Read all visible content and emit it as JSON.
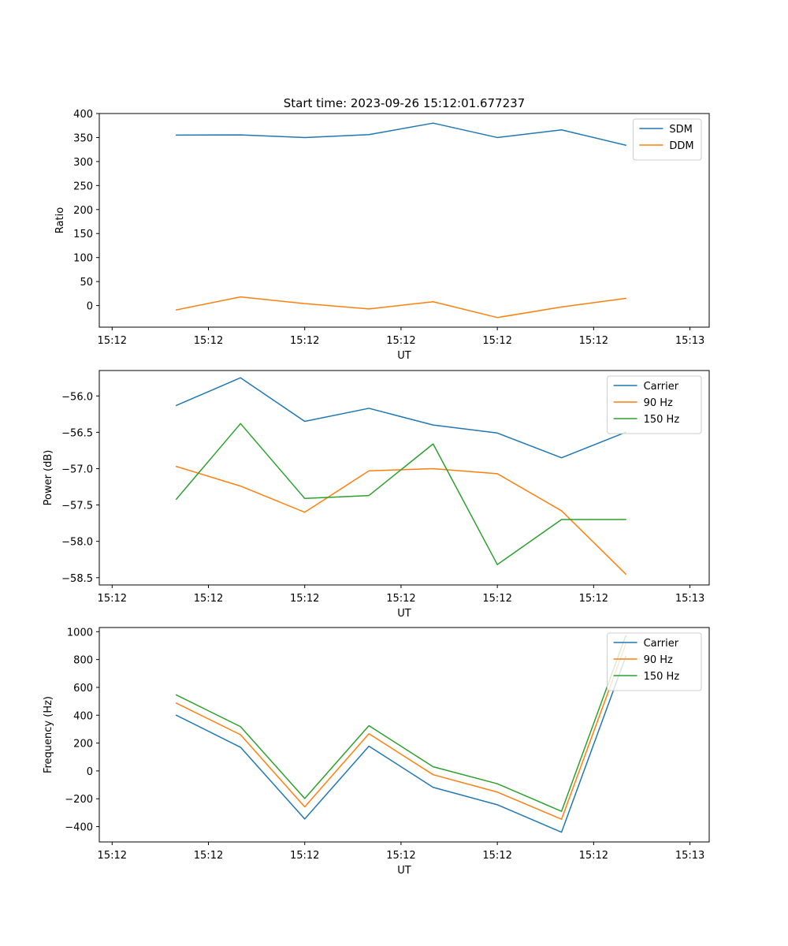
{
  "figure_title": "Start time: 2023-09-26 15:12:01.677237",
  "chart_data": [
    {
      "type": "line",
      "title": "Start time: 2023-09-26 15:12:01.677237",
      "xlabel": "UT",
      "ylabel": "Ratio",
      "x": [
        1,
        2,
        3,
        4,
        5,
        6,
        7,
        8
      ],
      "xlim": [
        -0.2,
        9.3
      ],
      "xticks": [
        0,
        1.5,
        3,
        4.5,
        6,
        7.5,
        9
      ],
      "xtick_labels": [
        "15:12",
        "15:12",
        "15:12",
        "15:12",
        "15:12",
        "15:12",
        "15:13"
      ],
      "ylim": [
        -45,
        400
      ],
      "yticks": [
        0,
        50,
        100,
        150,
        200,
        250,
        300,
        350,
        400
      ],
      "ytick_labels": [
        "0",
        "50",
        "100",
        "150",
        "200",
        "250",
        "300",
        "350",
        "400"
      ],
      "legend_position": "top-right",
      "series": [
        {
          "name": "SDM",
          "color": "#1f77b4",
          "values": [
            355,
            355.5,
            350,
            356,
            380,
            350,
            366,
            334
          ]
        },
        {
          "name": "DDM",
          "color": "#ff7f0e",
          "values": [
            -9,
            18,
            4,
            -7,
            8,
            -25,
            -3,
            15
          ]
        }
      ]
    },
    {
      "type": "line",
      "title": "",
      "xlabel": "UT",
      "ylabel": "Power (dB)",
      "x": [
        1,
        2,
        3,
        4,
        5,
        6,
        7,
        8
      ],
      "xlim": [
        -0.2,
        9.3
      ],
      "xticks": [
        0,
        1.5,
        3,
        4.5,
        6,
        7.5,
        9
      ],
      "xtick_labels": [
        "15:12",
        "15:12",
        "15:12",
        "15:12",
        "15:12",
        "15:12",
        "15:13"
      ],
      "ylim": [
        -58.6,
        -55.65
      ],
      "yticks": [
        -56.0,
        -56.5,
        -57.0,
        -57.5,
        -58.0,
        -58.5
      ],
      "ytick_labels": [
        "−56.0",
        "−56.5",
        "−57.0",
        "−57.5",
        "−58.0",
        "−58.5"
      ],
      "legend_position": "top-right",
      "series": [
        {
          "name": "Carrier",
          "color": "#1f77b4",
          "values": [
            -56.13,
            -55.75,
            -56.35,
            -56.17,
            -56.4,
            -56.51,
            -56.85,
            -56.5
          ]
        },
        {
          "name": "90 Hz",
          "color": "#ff7f0e",
          "values": [
            -56.97,
            -57.24,
            -57.6,
            -57.03,
            -57.0,
            -57.07,
            -57.58,
            -58.45
          ]
        },
        {
          "name": "150 Hz",
          "color": "#2ca02c",
          "values": [
            -57.42,
            -56.38,
            -57.41,
            -57.37,
            -56.66,
            -58.32,
            -57.7,
            -57.7
          ]
        }
      ]
    },
    {
      "type": "line",
      "title": "",
      "xlabel": "UT",
      "ylabel": "Frequency (Hz)",
      "x": [
        1,
        2,
        3,
        4,
        5,
        6,
        7,
        8
      ],
      "xlim": [
        -0.2,
        9.3
      ],
      "xticks": [
        0,
        1.5,
        3,
        4.5,
        6,
        7.5,
        9
      ],
      "xtick_labels": [
        "15:12",
        "15:12",
        "15:12",
        "15:12",
        "15:12",
        "15:12",
        "15:13"
      ],
      "ylim": [
        -510,
        1030
      ],
      "yticks": [
        -400,
        -200,
        0,
        200,
        400,
        600,
        800,
        1000
      ],
      "ytick_labels": [
        "−400",
        "−200",
        "0",
        "200",
        "400",
        "600",
        "800",
        "1000"
      ],
      "legend_position": "top-right",
      "series": [
        {
          "name": "Carrier",
          "color": "#1f77b4",
          "values": [
            400,
            170,
            -345,
            178,
            -118,
            -243,
            -440,
            820
          ]
        },
        {
          "name": "90 Hz",
          "color": "#ff7f0e",
          "values": [
            487,
            260,
            -258,
            267,
            -27,
            -152,
            -347,
            910
          ]
        },
        {
          "name": "150 Hz",
          "color": "#2ca02c",
          "values": [
            546,
            318,
            -198,
            325,
            30,
            -92,
            -290,
            970
          ]
        }
      ]
    }
  ]
}
